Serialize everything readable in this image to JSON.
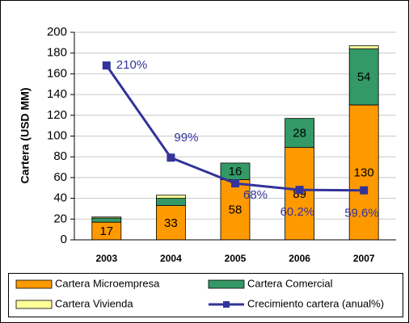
{
  "chart_data": {
    "type": "bar-line",
    "y_label": "Cartera (USD MM)",
    "categories": [
      "2003",
      "2004",
      "2005",
      "2006",
      "2007"
    ],
    "ylim": [
      0,
      200
    ],
    "yticks": [
      0,
      20,
      40,
      60,
      80,
      100,
      120,
      140,
      160,
      180,
      200
    ],
    "y2lim": [
      0,
      250
    ],
    "grid": true,
    "stacked": true,
    "legend": "bottom",
    "series": [
      {
        "name": "Cartera Microempresa",
        "color": "#ff9900",
        "values": [
          17,
          33,
          58,
          89,
          130
        ]
      },
      {
        "name": "Cartera Comercial",
        "color": "#339966",
        "values": [
          4,
          7,
          16,
          28,
          54
        ]
      },
      {
        "name": "Cartera Vivienda",
        "color": "#ffff99",
        "values": [
          1,
          3,
          0,
          0,
          3
        ]
      },
      {
        "name": "Crecimiento cartera (anual%)",
        "color": "#333399",
        "axis": "y2",
        "type": "line",
        "values": [
          210,
          99,
          68,
          60.2,
          59.6
        ],
        "value_labels": [
          "210%",
          "99%",
          "68%",
          "60.2%",
          "59.6%"
        ]
      }
    ]
  }
}
